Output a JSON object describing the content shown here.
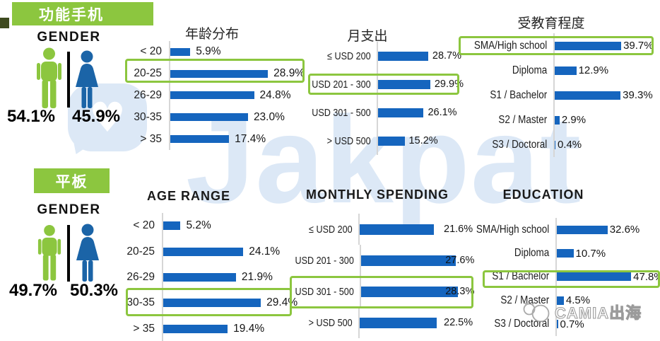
{
  "watermark": {
    "text": "Jakpat",
    "heart": "♥"
  },
  "brand": {
    "text": "CAMIA出海"
  },
  "colors": {
    "bar_blue": "#1565BE",
    "green": "#8CC63F",
    "male_green": "#8CC63F",
    "female_blue": "#1B64A7",
    "watermark_blue": "#dce8f6",
    "brand_gray": "#9b9b9b"
  },
  "sections": [
    {
      "badge": "功能手机",
      "gender": {
        "title": "GENDER",
        "male_pct": "54.1%",
        "female_pct": "45.9%"
      }
    },
    {
      "badge": "平板",
      "gender": {
        "title": "GENDER",
        "male_pct": "49.7%",
        "female_pct": "50.3%"
      }
    }
  ],
  "chart_data": [
    {
      "type": "bar",
      "orientation": "horizontal",
      "title": "年龄分布",
      "unit": "%",
      "categories": [
        "< 20",
        "20-25",
        "26-29",
        "30-35",
        "> 35"
      ],
      "values": [
        5.9,
        28.9,
        24.8,
        23.0,
        17.4
      ],
      "value_labels": [
        "5.9%",
        "28.9%",
        "24.8%",
        "23.0%",
        "17.4%"
      ],
      "highlight_index": 1
    },
    {
      "type": "bar",
      "orientation": "horizontal",
      "title": "月支出",
      "unit": "%",
      "categories": [
        "≤ USD 200",
        "USD 201 - 300",
        "USD 301 - 500",
        "> USD 500"
      ],
      "values": [
        28.7,
        29.9,
        26.1,
        15.2
      ],
      "value_labels": [
        "28.7%",
        "29.9%",
        "26.1%",
        "15.2%"
      ],
      "highlight_index": 1
    },
    {
      "type": "bar",
      "orientation": "horizontal",
      "title": "受教育程度",
      "unit": "%",
      "categories": [
        "SMA/High school",
        "Diploma",
        "S1 / Bachelor",
        "S2 / Master",
        "S3 / Doctoral"
      ],
      "values": [
        39.7,
        12.9,
        39.3,
        2.9,
        0.4
      ],
      "value_labels": [
        "39.7%",
        "12.9%",
        "39.3%",
        "2.9%",
        "0.4%"
      ],
      "highlight_index": 0
    },
    {
      "type": "bar",
      "orientation": "horizontal",
      "title": "AGE RANGE",
      "unit": "%",
      "categories": [
        "< 20",
        "20-25",
        "26-29",
        "30-35",
        "> 35"
      ],
      "values": [
        5.2,
        24.1,
        21.9,
        29.4,
        19.4
      ],
      "value_labels": [
        "5.2%",
        "24.1%",
        "21.9%",
        "29.4%",
        "19.4%"
      ],
      "highlight_index": 3
    },
    {
      "type": "bar",
      "orientation": "horizontal",
      "title": "MONTHLY SPENDING",
      "unit": "%",
      "categories": [
        "≤ USD 200",
        "USD 201 - 300",
        "USD 301 - 500",
        "> USD 500"
      ],
      "values": [
        21.6,
        27.6,
        28.3,
        22.5
      ],
      "value_labels": [
        "21.6%",
        "27.6%",
        "28.3%",
        "22.5%"
      ],
      "highlight_index": 2
    },
    {
      "type": "bar",
      "orientation": "horizontal",
      "title": "EDUCATION",
      "unit": "%",
      "categories": [
        "SMA/High school",
        "Diploma",
        "S1 / Bachelor",
        "S2 / Master",
        "S3 / Doctoral"
      ],
      "values": [
        32.6,
        10.7,
        47.8,
        4.5,
        0.7
      ],
      "value_labels": [
        "32.6%",
        "10.7%",
        "47.8%",
        "4.5%",
        "0.7%"
      ],
      "highlight_index": 2
    }
  ]
}
